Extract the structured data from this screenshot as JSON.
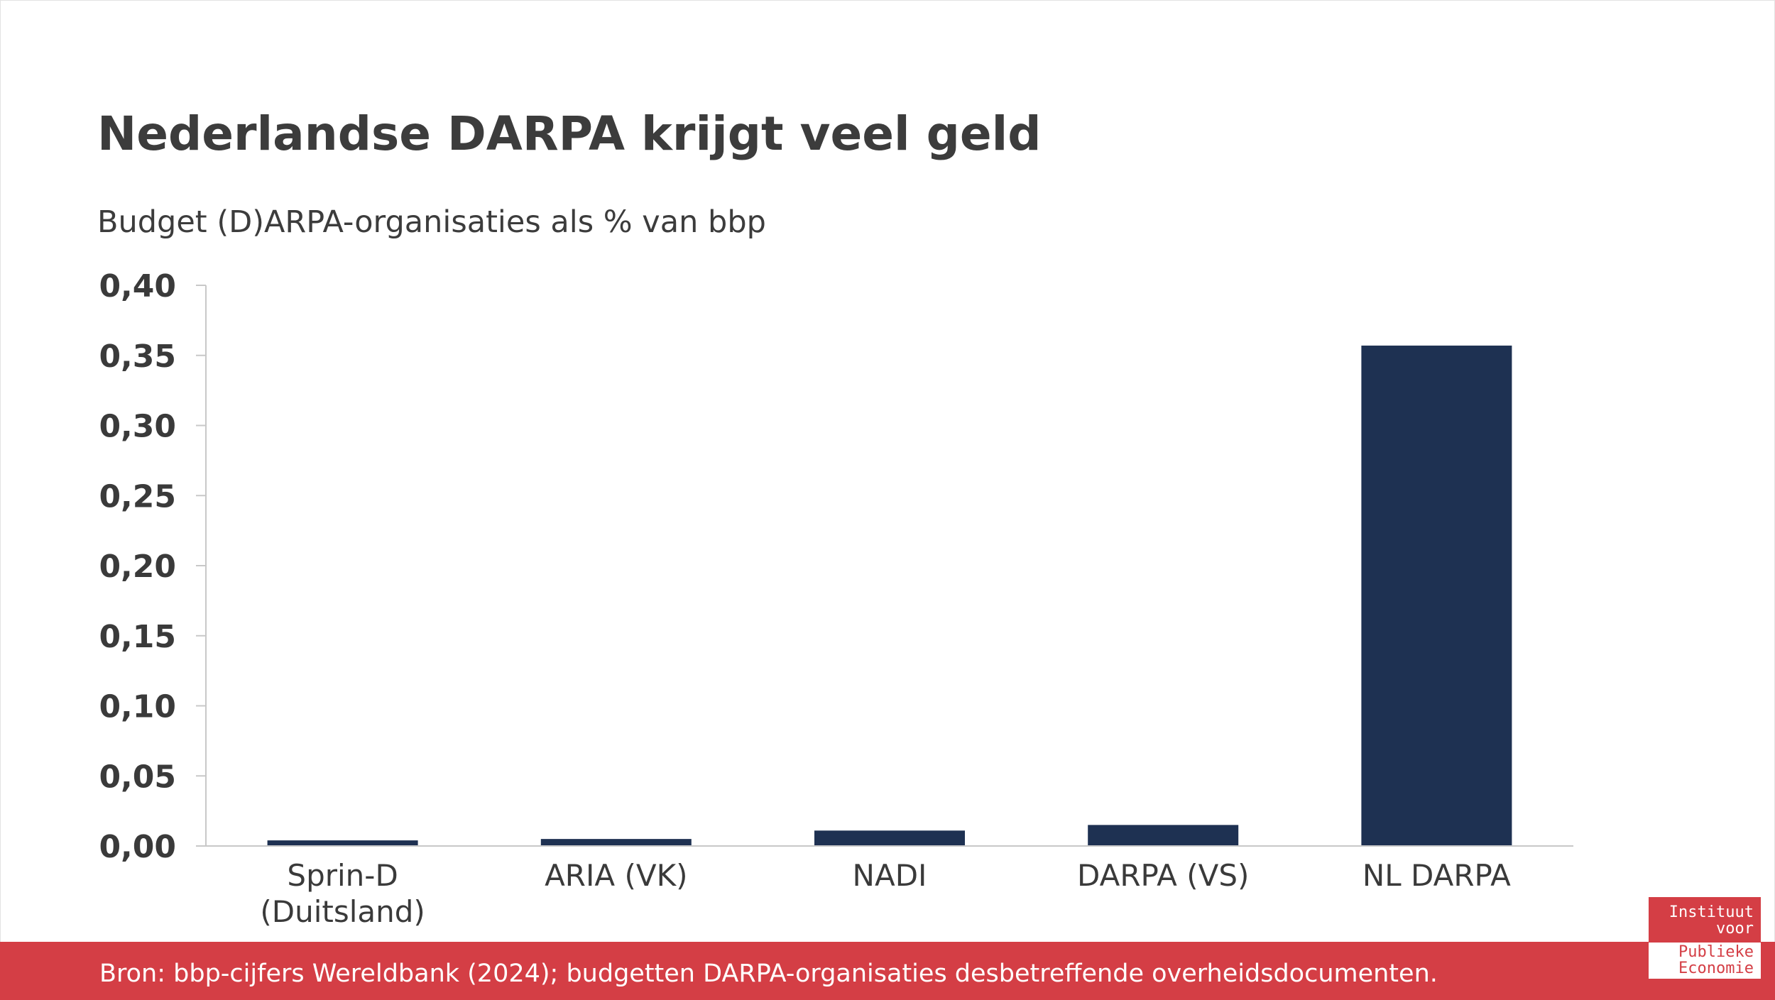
{
  "title": "Nederlandse DARPA krijgt veel geld",
  "subtitle": "Budget (D)ARPA-organisaties als % van bbp",
  "source": "Bron: bbp-cijfers Wereldbank (2024); budgetten DARPA-organisaties desbetreffende overheidsdocumenten.",
  "logo": {
    "line1": "Instituut",
    "line2": "voor",
    "line3": "Publieke",
    "line4": "Economie"
  },
  "colors": {
    "bar": "#1e3152",
    "accent": "#d43e45",
    "text": "#3a3a3a"
  },
  "chart_data": {
    "type": "bar",
    "title": "Nederlandse DARPA krijgt veel geld",
    "subtitle": "Budget (D)ARPA-organisaties als % van bbp",
    "categories": [
      [
        "Sprin-D",
        "(Duitsland)"
      ],
      [
        "ARIA (VK)"
      ],
      [
        "NADI"
      ],
      [
        "DARPA (VS)"
      ],
      [
        "NL DARPA"
      ]
    ],
    "values": [
      0.004,
      0.005,
      0.011,
      0.015,
      0.357
    ],
    "yticks": [
      "0,00",
      "0,05",
      "0,10",
      "0,15",
      "0,20",
      "0,25",
      "0,30",
      "0,35",
      "0,40"
    ],
    "ylim": [
      0,
      0.4
    ],
    "grid": false,
    "legend": "none"
  }
}
